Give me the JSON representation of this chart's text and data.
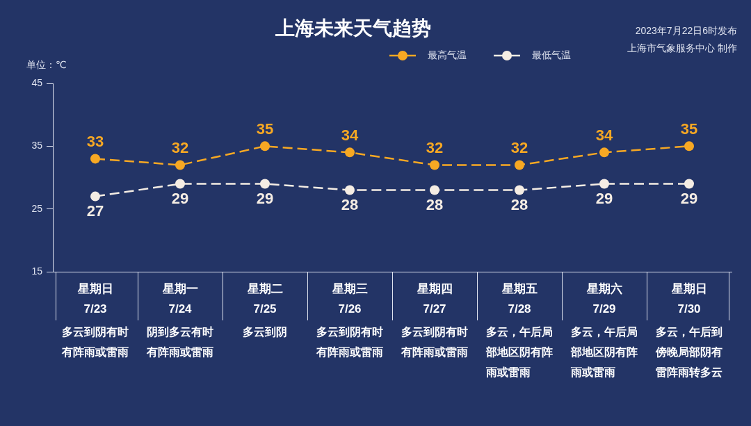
{
  "chart_data": {
    "type": "line",
    "title": "上海未来天气趋势",
    "ylabel": "单位：℃",
    "categories": [
      "星期日\n7/23",
      "星期一\n7/24",
      "星期二\n7/25",
      "星期三\n7/26",
      "星期四\n7/27",
      "星期五\n7/28",
      "星期六\n7/29",
      "星期日\n7/30"
    ],
    "series": [
      {
        "name": "最高气温",
        "color": "#f7a823",
        "values": [
          33,
          32,
          35,
          34,
          32,
          32,
          34,
          35
        ]
      },
      {
        "name": "最低气温",
        "color": "#f5ede4",
        "values": [
          27,
          29,
          29,
          28,
          28,
          28,
          29,
          29
        ]
      }
    ],
    "ylim": [
      15,
      45
    ],
    "yticks": [
      15,
      25,
      35,
      45
    ],
    "grid": false,
    "legend": "top",
    "marker": "circle",
    "line_style": "dashed",
    "data_labels": true,
    "annotations": [
      "2023年7月22日6时发布",
      "上海市气象服务中心 制作",
      "多云到阴有时有阵雨或雷雨",
      "阴到多云有时有阵雨或雷雨",
      "多云到阴",
      "多云到阴有时有阵雨或雷雨",
      "多云到阴有时有阵雨或雷雨",
      "多云，午后局部地区阴有阵雨或雷雨",
      "多云，午后局部地区阴有阵雨或雷雨",
      "多云，午后到傍晚局部阴有雷阵雨转多云"
    ]
  }
}
